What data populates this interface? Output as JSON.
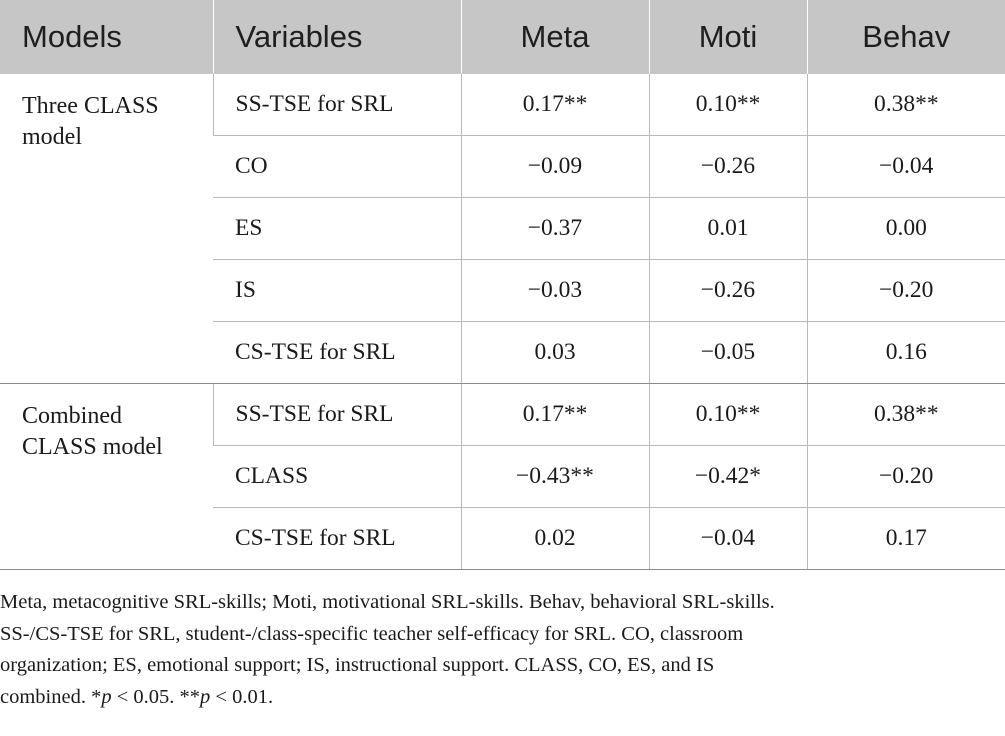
{
  "table": {
    "headers": [
      "Models",
      "Variables",
      "Meta",
      "Moti",
      "Behav"
    ],
    "groups": [
      {
        "model_lines": [
          "Three CLASS",
          "model"
        ],
        "rows": [
          {
            "variable": "SS-TSE for SRL",
            "meta": "0.17**",
            "moti": "0.10**",
            "behav": "0.38**"
          },
          {
            "variable": "CO",
            "meta": "−0.09",
            "moti": "−0.26",
            "behav": "−0.04"
          },
          {
            "variable": "ES",
            "meta": "−0.37",
            "moti": "0.01",
            "behav": "0.00"
          },
          {
            "variable": "IS",
            "meta": "−0.03",
            "moti": "−0.26",
            "behav": "−0.20"
          },
          {
            "variable": "CS-TSE for SRL",
            "meta": "0.03",
            "moti": "−0.05",
            "behav": "0.16"
          }
        ]
      },
      {
        "model_lines": [
          "Combined",
          "CLASS model"
        ],
        "rows": [
          {
            "variable": "SS-TSE for SRL",
            "meta": "0.17**",
            "moti": "0.10**",
            "behav": "0.38**"
          },
          {
            "variable": "CLASS",
            "meta": "−0.43**",
            "moti": "−0.42*",
            "behav": "−0.20"
          },
          {
            "variable": "CS-TSE for SRL",
            "meta": "0.02",
            "moti": "−0.04",
            "behav": "0.17"
          }
        ]
      }
    ]
  },
  "footnote": {
    "line1": "Meta, metacognitive SRL-skills; Moti, motivational SRL-skills. Behav, behavioral SRL-skills.",
    "line2": "SS-/CS-TSE for SRL, student-/class-specific teacher self-efficacy for SRL. CO, classroom",
    "line3": "organization; ES, emotional support; IS, instructional support. CLASS, CO, ES, and IS",
    "line4_a": "combined. *",
    "line4_p1": "p",
    "line4_b": " < 0.05. **",
    "line4_p2": "p",
    "line4_c": " < 0.01."
  }
}
